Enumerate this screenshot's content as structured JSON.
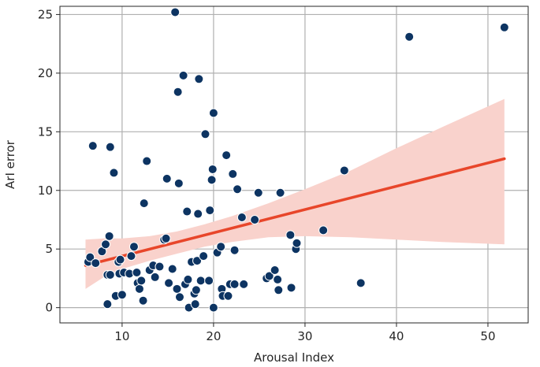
{
  "chart_data": {
    "type": "scatter",
    "title": "",
    "xlabel": "Arousal Index",
    "ylabel": "ArI error",
    "xlim": [
      3.2,
      54.4
    ],
    "ylim": [
      -1.3,
      25.7
    ],
    "grid": true,
    "xticks": [
      10,
      20,
      30,
      40,
      50
    ],
    "yticks": [
      0,
      5,
      10,
      15,
      20,
      25
    ],
    "colors": {
      "points": "#0d3462",
      "point_edge": "#ffffff",
      "regression_line": "#e8462a",
      "confidence_band": "#f9d2cc",
      "grid": "#b0b0b0"
    },
    "regression": {
      "x": [
        6.0,
        51.8
      ],
      "y": [
        3.6,
        12.7
      ],
      "band_x": [
        6.0,
        8.0,
        10.0,
        13.0,
        16.0,
        19.0,
        22.0,
        26.0,
        30.0,
        35.0,
        40.0,
        45.0,
        51.8
      ],
      "band_lower": [
        1.6,
        2.6,
        3.3,
        4.0,
        4.6,
        5.2,
        5.6,
        6.0,
        6.1,
        6.0,
        5.8,
        5.6,
        5.4
      ],
      "band_upper": [
        5.8,
        5.9,
        5.9,
        6.1,
        6.5,
        7.1,
        7.8,
        8.9,
        10.1,
        11.7,
        13.6,
        15.4,
        17.8
      ]
    },
    "points": [
      {
        "x": 6.3,
        "y": 3.9
      },
      {
        "x": 6.5,
        "y": 4.3
      },
      {
        "x": 6.8,
        "y": 13.8
      },
      {
        "x": 7.1,
        "y": 3.8
      },
      {
        "x": 7.8,
        "y": 4.8
      },
      {
        "x": 8.2,
        "y": 5.4
      },
      {
        "x": 8.4,
        "y": 2.8
      },
      {
        "x": 8.4,
        "y": 0.3
      },
      {
        "x": 8.6,
        "y": 6.1
      },
      {
        "x": 8.7,
        "y": 13.7
      },
      {
        "x": 8.7,
        "y": 2.8
      },
      {
        "x": 9.1,
        "y": 11.5
      },
      {
        "x": 9.3,
        "y": 1.0
      },
      {
        "x": 9.6,
        "y": 3.9
      },
      {
        "x": 9.7,
        "y": 2.9
      },
      {
        "x": 9.8,
        "y": 4.1
      },
      {
        "x": 10.0,
        "y": 1.1
      },
      {
        "x": 10.2,
        "y": 3.0
      },
      {
        "x": 10.8,
        "y": 2.9
      },
      {
        "x": 11.0,
        "y": 4.4
      },
      {
        "x": 11.3,
        "y": 5.2
      },
      {
        "x": 11.6,
        "y": 3.0
      },
      {
        "x": 11.7,
        "y": 2.1
      },
      {
        "x": 11.9,
        "y": 1.6
      },
      {
        "x": 12.1,
        "y": 2.3
      },
      {
        "x": 12.3,
        "y": 0.6
      },
      {
        "x": 12.4,
        "y": 8.9
      },
      {
        "x": 12.7,
        "y": 12.5
      },
      {
        "x": 13.0,
        "y": 3.2
      },
      {
        "x": 13.4,
        "y": 3.6
      },
      {
        "x": 13.6,
        "y": 2.6
      },
      {
        "x": 14.1,
        "y": 3.5
      },
      {
        "x": 14.6,
        "y": 5.8
      },
      {
        "x": 14.8,
        "y": 5.9
      },
      {
        "x": 14.9,
        "y": 11.0
      },
      {
        "x": 15.1,
        "y": 2.1
      },
      {
        "x": 15.5,
        "y": 3.3
      },
      {
        "x": 15.8,
        "y": 25.2
      },
      {
        "x": 16.1,
        "y": 18.4
      },
      {
        "x": 16.2,
        "y": 10.6
      },
      {
        "x": 16.0,
        "y": 1.6
      },
      {
        "x": 16.3,
        "y": 0.9
      },
      {
        "x": 16.7,
        "y": 19.8
      },
      {
        "x": 16.9,
        "y": 2.0
      },
      {
        "x": 17.1,
        "y": 8.2
      },
      {
        "x": 17.2,
        "y": 2.4
      },
      {
        "x": 17.3,
        "y": 0.0
      },
      {
        "x": 17.6,
        "y": 3.9
      },
      {
        "x": 17.9,
        "y": 1.2
      },
      {
        "x": 18.0,
        "y": 0.3
      },
      {
        "x": 18.1,
        "y": 1.5
      },
      {
        "x": 18.2,
        "y": 4.0
      },
      {
        "x": 18.3,
        "y": 8.0
      },
      {
        "x": 18.4,
        "y": 19.5
      },
      {
        "x": 18.6,
        "y": 2.3
      },
      {
        "x": 18.9,
        "y": 4.4
      },
      {
        "x": 19.1,
        "y": 14.8
      },
      {
        "x": 19.5,
        "y": 2.3
      },
      {
        "x": 19.6,
        "y": 8.3
      },
      {
        "x": 19.8,
        "y": 10.9
      },
      {
        "x": 19.9,
        "y": 11.8
      },
      {
        "x": 20.0,
        "y": 16.6
      },
      {
        "x": 20.0,
        "y": 0.0
      },
      {
        "x": 20.4,
        "y": 4.7
      },
      {
        "x": 20.8,
        "y": 5.2
      },
      {
        "x": 20.9,
        "y": 1.6
      },
      {
        "x": 21.0,
        "y": 1.0
      },
      {
        "x": 21.4,
        "y": 13.0
      },
      {
        "x": 21.6,
        "y": 1.0
      },
      {
        "x": 21.8,
        "y": 2.0
      },
      {
        "x": 22.1,
        "y": 11.4
      },
      {
        "x": 22.3,
        "y": 2.0
      },
      {
        "x": 22.3,
        "y": 4.9
      },
      {
        "x": 22.6,
        "y": 10.1
      },
      {
        "x": 23.1,
        "y": 7.7
      },
      {
        "x": 23.3,
        "y": 2.0
      },
      {
        "x": 24.5,
        "y": 7.5
      },
      {
        "x": 24.9,
        "y": 9.8
      },
      {
        "x": 25.8,
        "y": 2.5
      },
      {
        "x": 26.1,
        "y": 2.7
      },
      {
        "x": 26.7,
        "y": 3.2
      },
      {
        "x": 27.0,
        "y": 2.4
      },
      {
        "x": 27.1,
        "y": 1.5
      },
      {
        "x": 27.3,
        "y": 9.8
      },
      {
        "x": 28.4,
        "y": 6.2
      },
      {
        "x": 28.5,
        "y": 1.7
      },
      {
        "x": 29.0,
        "y": 5.0
      },
      {
        "x": 29.1,
        "y": 5.5
      },
      {
        "x": 32.0,
        "y": 6.6
      },
      {
        "x": 34.3,
        "y": 11.7
      },
      {
        "x": 36.1,
        "y": 2.1
      },
      {
        "x": 41.4,
        "y": 23.1
      },
      {
        "x": 51.8,
        "y": 23.9
      }
    ]
  }
}
